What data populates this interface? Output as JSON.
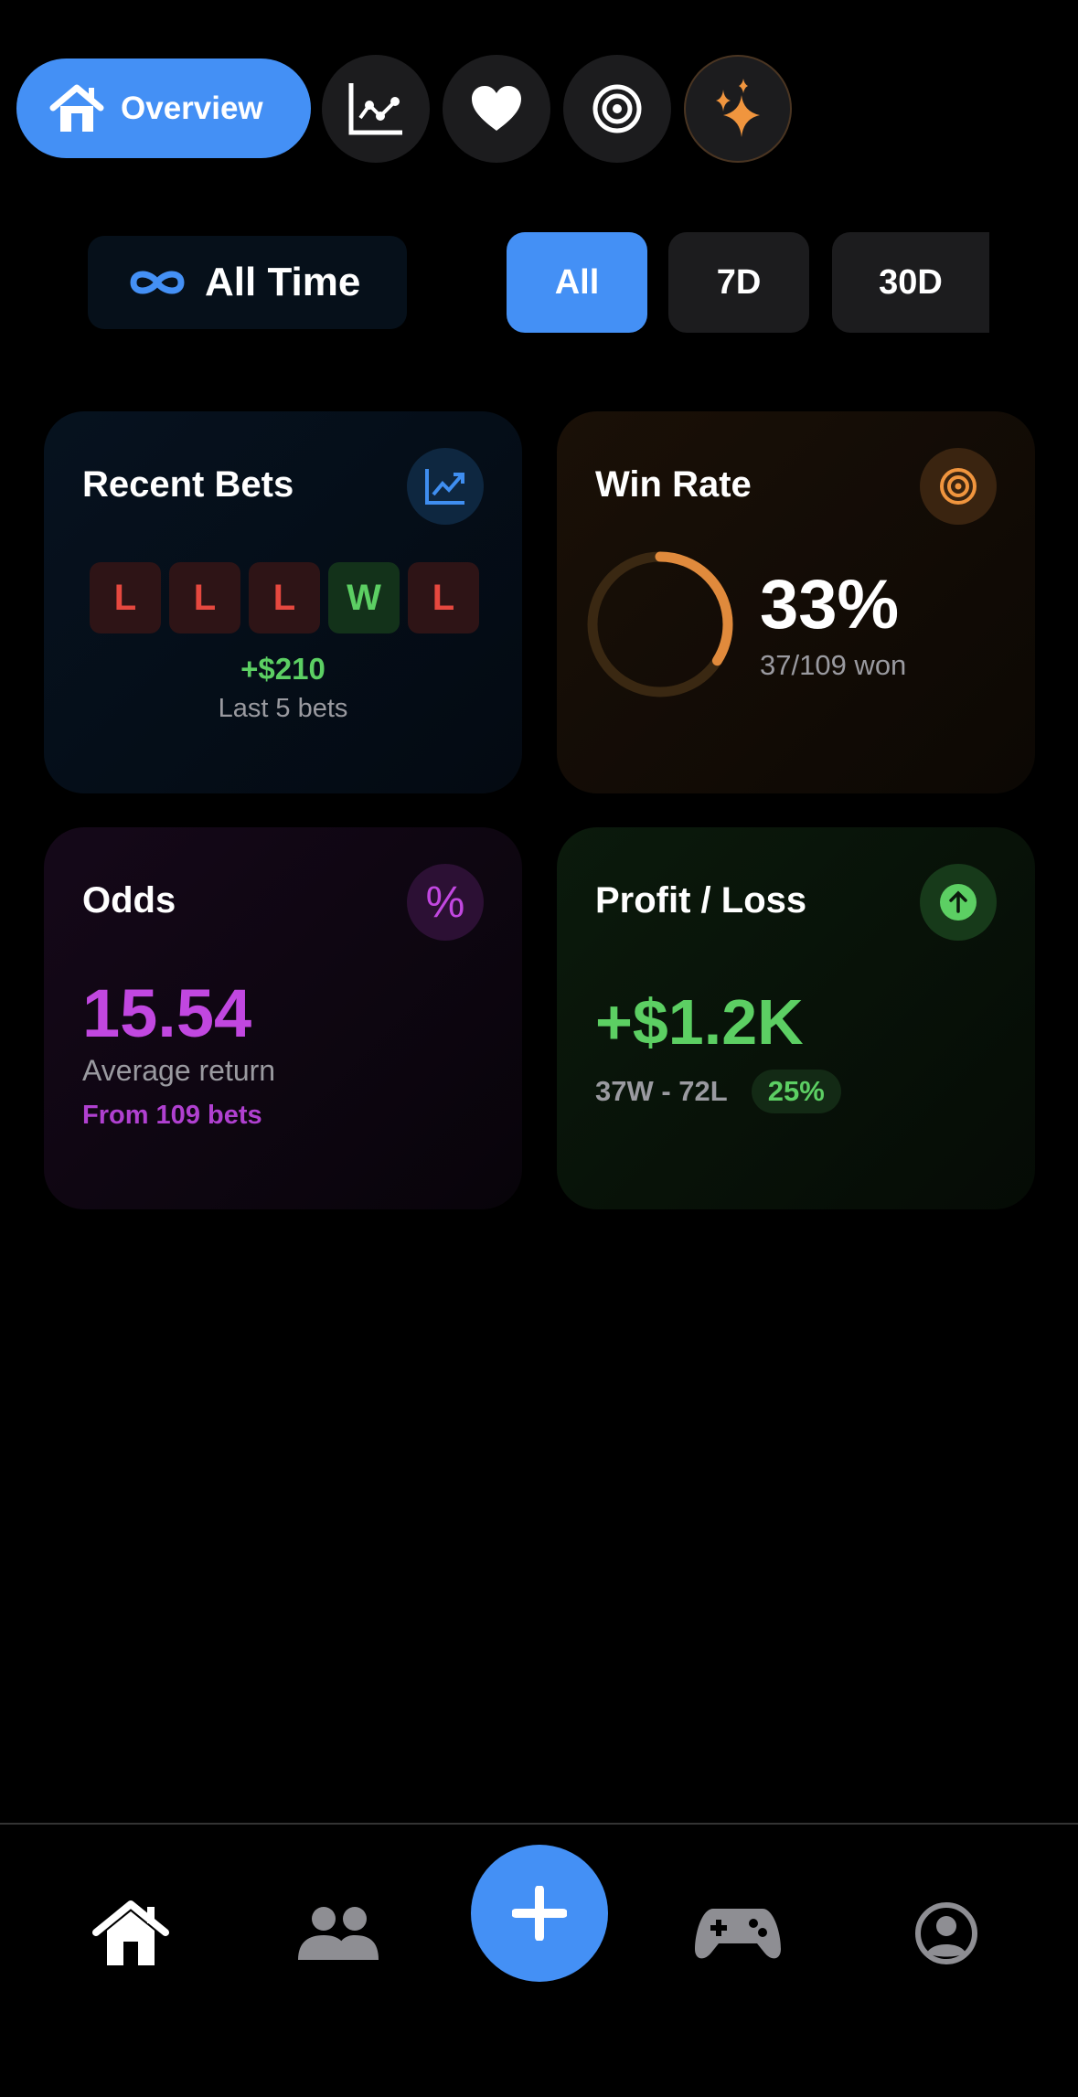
{
  "top_nav": {
    "active_label": "Overview",
    "items": [
      {
        "icon": "home-icon",
        "label": "Overview"
      },
      {
        "icon": "chart-line-icon"
      },
      {
        "icon": "heart-icon"
      },
      {
        "icon": "target-icon"
      },
      {
        "icon": "sparkles-icon"
      }
    ]
  },
  "filters": {
    "range_label": "All Time",
    "segments": [
      "All",
      "7D",
      "30D"
    ],
    "selected": "All"
  },
  "cards": {
    "recent_bets": {
      "title": "Recent Bets",
      "results": [
        "L",
        "L",
        "L",
        "W",
        "L"
      ],
      "amount": "+$210",
      "caption": "Last 5 bets"
    },
    "win_rate": {
      "title": "Win Rate",
      "value": "33%",
      "caption": "37/109 won",
      "fraction": 0.34
    },
    "odds": {
      "title": "Odds",
      "icon_text": "%",
      "value": "15.54",
      "caption": "Average return",
      "subcaption": "From 109 bets"
    },
    "profit_loss": {
      "title": "Profit / Loss",
      "value": "+$1.2K",
      "record": "37W - 72L",
      "badge": "25%"
    }
  },
  "colors": {
    "accent": "#4490f5",
    "win": "#5ccf63",
    "loss": "#e5483f",
    "orange": "#e08a3c",
    "purple": "#c147e0"
  },
  "tab_bar": {
    "items": [
      "home-icon",
      "people-icon",
      "add-icon",
      "gamecontroller-icon",
      "profile-icon"
    ]
  }
}
